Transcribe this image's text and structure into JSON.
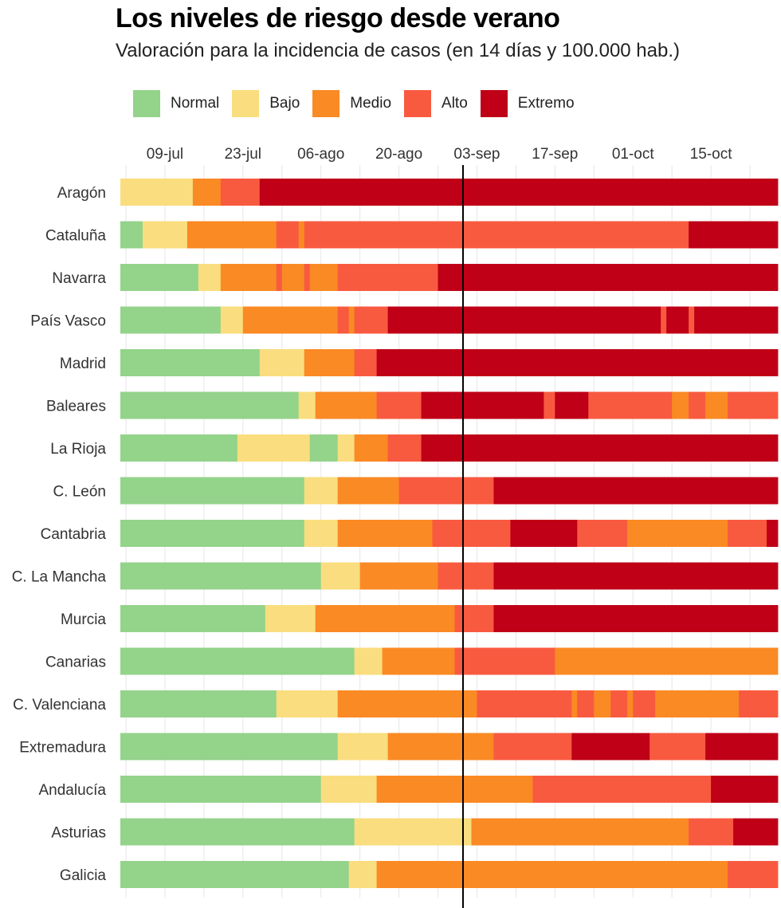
{
  "chart_data": {
    "type": "bar",
    "title": "Los niveles de riesgo desde verano",
    "subtitle": "Valoración para la incidencia de casos (en 14 días y 100.000 hab.)",
    "xlabel": "",
    "ylabel": "",
    "x_ticks": [
      {
        "label": "09-jul",
        "day": 8
      },
      {
        "label": "23-jul",
        "day": 22
      },
      {
        "label": "06-ago",
        "day": 36
      },
      {
        "label": "20-ago",
        "day": 50
      },
      {
        "label": "03-sep",
        "day": 64
      },
      {
        "label": "17-sep",
        "day": 78
      },
      {
        "label": "01-oct",
        "day": 92
      },
      {
        "label": "15-oct",
        "day": 106
      }
    ],
    "x_range_days": [
      0,
      118
    ],
    "start_date": "01-jul",
    "reference_line_day": 61.5,
    "levels": [
      {
        "key": "normal",
        "label": "Normal",
        "color": "#93d38a"
      },
      {
        "key": "bajo",
        "label": "Bajo",
        "color": "#fadd7e"
      },
      {
        "key": "medio",
        "label": "Medio",
        "color": "#fa8a24"
      },
      {
        "key": "alto",
        "label": "Alto",
        "color": "#f85a40"
      },
      {
        "key": "extremo",
        "label": "Extremo",
        "color": "#bf0017"
      }
    ],
    "series": [
      {
        "name": "Aragón",
        "segments": [
          [
            "bajo",
            13
          ],
          [
            "medio",
            5
          ],
          [
            "alto",
            7
          ],
          [
            "extremo",
            93
          ]
        ]
      },
      {
        "name": "Cataluña",
        "segments": [
          [
            "normal",
            4
          ],
          [
            "bajo",
            8
          ],
          [
            "medio",
            16
          ],
          [
            "alto",
            4
          ],
          [
            "medio",
            1
          ],
          [
            "alto",
            69
          ],
          [
            "extremo",
            16
          ]
        ]
      },
      {
        "name": "Navarra",
        "segments": [
          [
            "normal",
            14
          ],
          [
            "bajo",
            4
          ],
          [
            "medio",
            10
          ],
          [
            "alto",
            1
          ],
          [
            "medio",
            4
          ],
          [
            "alto",
            1
          ],
          [
            "medio",
            5
          ],
          [
            "alto",
            18
          ],
          [
            "extremo",
            61
          ]
        ]
      },
      {
        "name": "País Vasco",
        "segments": [
          [
            "normal",
            18
          ],
          [
            "bajo",
            4
          ],
          [
            "medio",
            17
          ],
          [
            "alto",
            2
          ],
          [
            "medio",
            1
          ],
          [
            "alto",
            6
          ],
          [
            "extremo",
            49
          ],
          [
            "alto",
            1
          ],
          [
            "extremo",
            4
          ],
          [
            "alto",
            1
          ],
          [
            "extremo",
            15
          ]
        ]
      },
      {
        "name": "Madrid",
        "segments": [
          [
            "normal",
            25
          ],
          [
            "bajo",
            8
          ],
          [
            "medio",
            9
          ],
          [
            "alto",
            4
          ],
          [
            "extremo",
            72
          ]
        ]
      },
      {
        "name": "Baleares",
        "segments": [
          [
            "normal",
            32
          ],
          [
            "bajo",
            3
          ],
          [
            "medio",
            11
          ],
          [
            "alto",
            8
          ],
          [
            "extremo",
            22
          ],
          [
            "alto",
            2
          ],
          [
            "extremo",
            6
          ],
          [
            "alto",
            15
          ],
          [
            "medio",
            3
          ],
          [
            "alto",
            3
          ],
          [
            "medio",
            4
          ],
          [
            "alto",
            9
          ]
        ]
      },
      {
        "name": "La Rioja",
        "segments": [
          [
            "normal",
            21
          ],
          [
            "bajo",
            13
          ],
          [
            "normal",
            5
          ],
          [
            "bajo",
            3
          ],
          [
            "medio",
            6
          ],
          [
            "alto",
            6
          ],
          [
            "extremo",
            64
          ]
        ]
      },
      {
        "name": "C. León",
        "segments": [
          [
            "normal",
            33
          ],
          [
            "bajo",
            6
          ],
          [
            "medio",
            11
          ],
          [
            "alto",
            17
          ],
          [
            "extremo",
            51
          ]
        ]
      },
      {
        "name": "Cantabria",
        "segments": [
          [
            "normal",
            33
          ],
          [
            "bajo",
            6
          ],
          [
            "medio",
            17
          ],
          [
            "alto",
            14
          ],
          [
            "extremo",
            12
          ],
          [
            "alto",
            9
          ],
          [
            "medio",
            18
          ],
          [
            "alto",
            7
          ],
          [
            "extremo",
            2
          ]
        ]
      },
      {
        "name": "C. La Mancha",
        "segments": [
          [
            "normal",
            36
          ],
          [
            "bajo",
            7
          ],
          [
            "medio",
            14
          ],
          [
            "alto",
            10
          ],
          [
            "extremo",
            51
          ]
        ]
      },
      {
        "name": "Murcia",
        "segments": [
          [
            "normal",
            26
          ],
          [
            "bajo",
            9
          ],
          [
            "medio",
            25
          ],
          [
            "alto",
            7
          ],
          [
            "extremo",
            51
          ]
        ]
      },
      {
        "name": "Canarias",
        "segments": [
          [
            "normal",
            42
          ],
          [
            "bajo",
            5
          ],
          [
            "medio",
            13
          ],
          [
            "alto",
            18
          ],
          [
            "medio",
            40
          ]
        ]
      },
      {
        "name": "C. Valenciana",
        "segments": [
          [
            "normal",
            28
          ],
          [
            "bajo",
            11
          ],
          [
            "medio",
            25
          ],
          [
            "alto",
            17
          ],
          [
            "medio",
            1
          ],
          [
            "alto",
            3
          ],
          [
            "medio",
            3
          ],
          [
            "alto",
            3
          ],
          [
            "medio",
            1
          ],
          [
            "alto",
            4
          ],
          [
            "medio",
            15
          ],
          [
            "alto",
            7
          ]
        ]
      },
      {
        "name": "Extremadura",
        "segments": [
          [
            "normal",
            39
          ],
          [
            "bajo",
            9
          ],
          [
            "medio",
            19
          ],
          [
            "alto",
            14
          ],
          [
            "extremo",
            14
          ],
          [
            "alto",
            10
          ],
          [
            "extremo",
            13
          ]
        ]
      },
      {
        "name": "Andalucía",
        "segments": [
          [
            "normal",
            36
          ],
          [
            "bajo",
            10
          ],
          [
            "medio",
            28
          ],
          [
            "alto",
            32
          ],
          [
            "extremo",
            12
          ]
        ]
      },
      {
        "name": "Asturias",
        "segments": [
          [
            "normal",
            42
          ],
          [
            "bajo",
            21
          ],
          [
            "medio",
            39
          ],
          [
            "alto",
            8
          ],
          [
            "extremo",
            8
          ]
        ]
      },
      {
        "name": "Galicia",
        "segments": [
          [
            "normal",
            41
          ],
          [
            "bajo",
            5
          ],
          [
            "medio",
            63
          ],
          [
            "alto",
            9
          ]
        ]
      }
    ]
  }
}
